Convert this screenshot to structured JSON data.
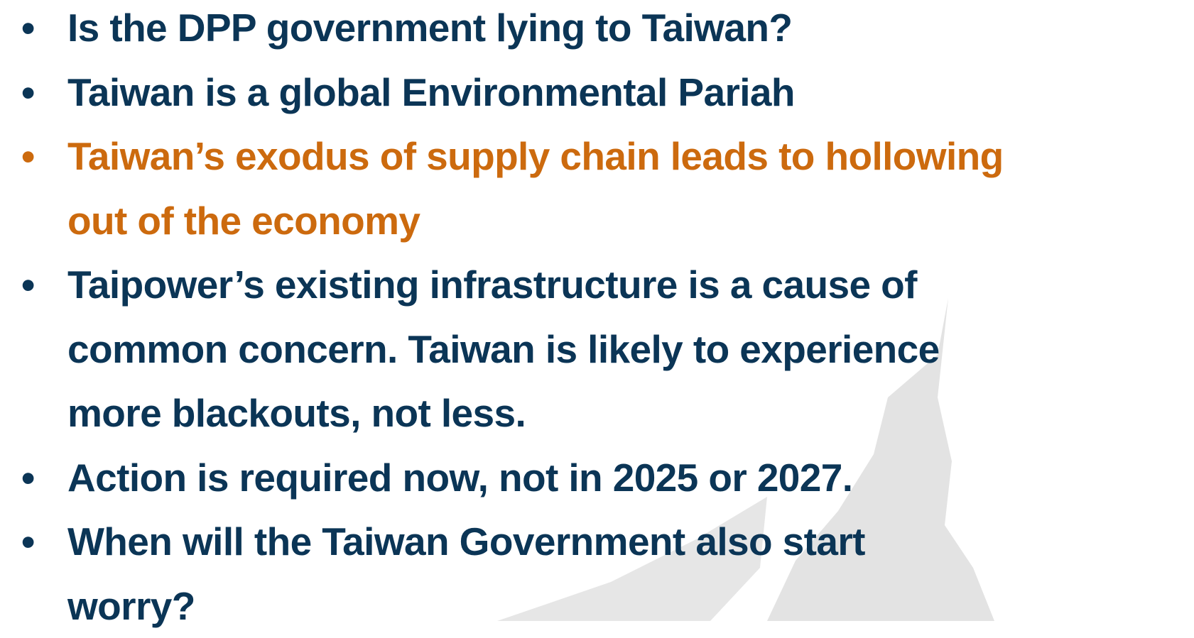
{
  "bullets": [
    {
      "lines": [
        "Is the DPP government lying to Taiwan?"
      ],
      "color": "#0b3556"
    },
    {
      "lines": [
        "Taiwan is a global Environmental Pariah"
      ],
      "color": "#0b3556"
    },
    {
      "lines": [
        "Taiwan’s exodus of supply chain leads to hollowing",
        "out of the economy"
      ],
      "color": "#cc6a0e"
    },
    {
      "lines": [
        "Taipower’s existing infrastructure is a cause of",
        "common concern. Taiwan is likely to experience",
        "more blackouts, not less."
      ],
      "color": "#0b3556"
    },
    {
      "lines": [
        "Action is required now, not in 2025 or 2027."
      ],
      "color": "#0b3556"
    },
    {
      "lines": [
        "When will the Taiwan Government also start",
        "worry?"
      ],
      "color": "#0b3556"
    }
  ]
}
